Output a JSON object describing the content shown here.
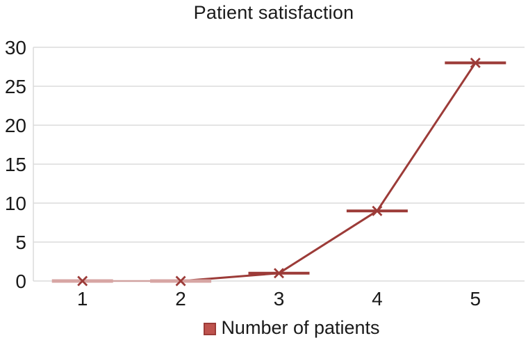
{
  "title": "Patient satisfaction",
  "legend": {
    "label": "Number of patients",
    "swatch_fill": "#be534e",
    "swatch_border": "#9c3b38"
  },
  "chart_data": {
    "type": "line",
    "title": "Patient satisfaction",
    "categories": [
      "1",
      "2",
      "3",
      "4",
      "5"
    ],
    "series": [
      {
        "name": "Number of patients",
        "values": [
          0,
          0,
          1,
          9,
          28
        ]
      }
    ],
    "xlabel": "",
    "ylabel": "",
    "ylim": [
      0,
      30
    ],
    "yticks": [
      0,
      5,
      10,
      15,
      20,
      25,
      30
    ],
    "grid": "horizontal-only",
    "legend_position": "bottom-center",
    "marker": "x-with-horizontal-dash",
    "colors": {
      "line": "#9c3b38",
      "faded_dash": "#d7a5a3",
      "faded_segment": "#d0a2a0",
      "gridline": "#dbdbdb",
      "text": "#1a1a1a"
    },
    "point_dash_faded": [
      true,
      true,
      false,
      false,
      false
    ],
    "segment_faded": [
      true,
      false,
      false,
      false
    ]
  }
}
